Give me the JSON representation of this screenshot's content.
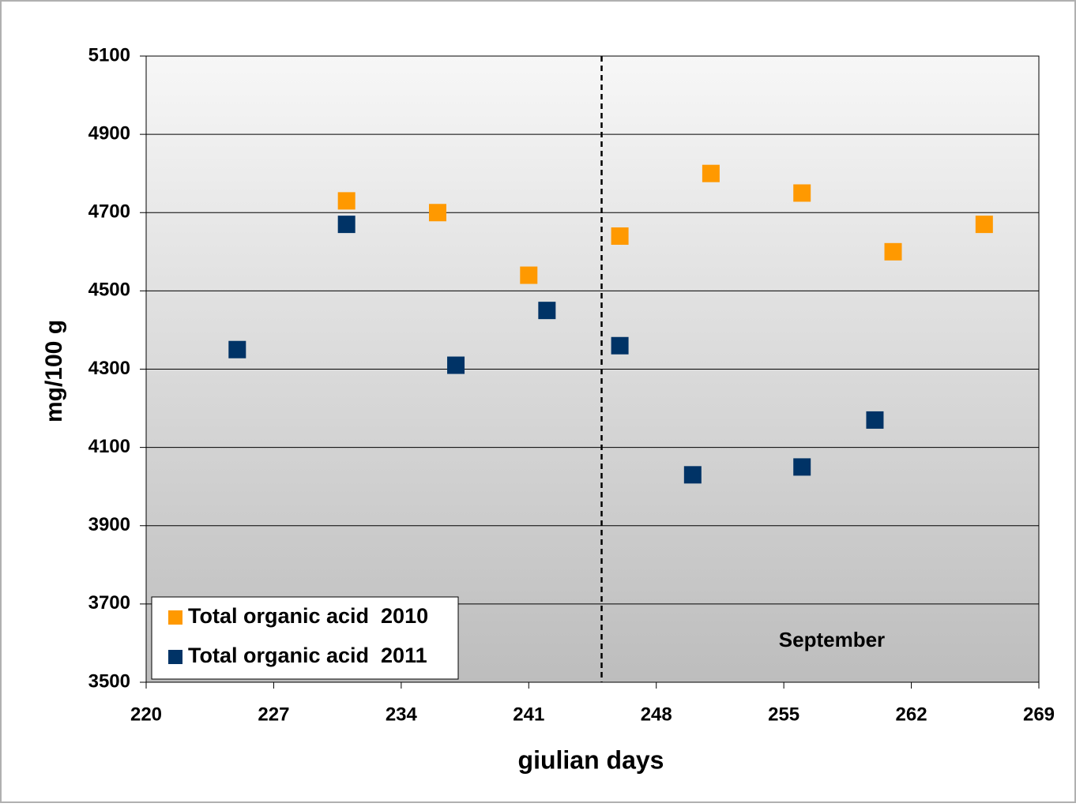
{
  "chart_data": {
    "type": "scatter",
    "xlabel": "giulian days",
    "ylabel": "mg/100 g",
    "xlim": [
      220,
      269
    ],
    "xticks": [
      220,
      227,
      234,
      241,
      248,
      255,
      262,
      269
    ],
    "ylim": [
      3500,
      5100
    ],
    "yticks": [
      3500,
      3700,
      3900,
      4100,
      4300,
      4500,
      4700,
      4900,
      5100
    ],
    "grid": true,
    "legend": "lower left",
    "vline": 245,
    "annotation": "September",
    "series": [
      {
        "name": "Total organic acid  2010",
        "color": "#ff9900",
        "x": [
          231,
          236,
          241,
          246,
          251,
          256,
          261,
          266
        ],
        "values": [
          4730,
          4700,
          4540,
          4640,
          4800,
          4750,
          4600,
          4670
        ]
      },
      {
        "name": "Total organic acid  2011",
        "color": "#003366",
        "x": [
          225,
          231,
          237,
          242,
          246,
          250,
          256,
          260
        ],
        "values": [
          4350,
          4670,
          4310,
          4450,
          4360,
          4030,
          4050,
          4170
        ]
      }
    ]
  }
}
